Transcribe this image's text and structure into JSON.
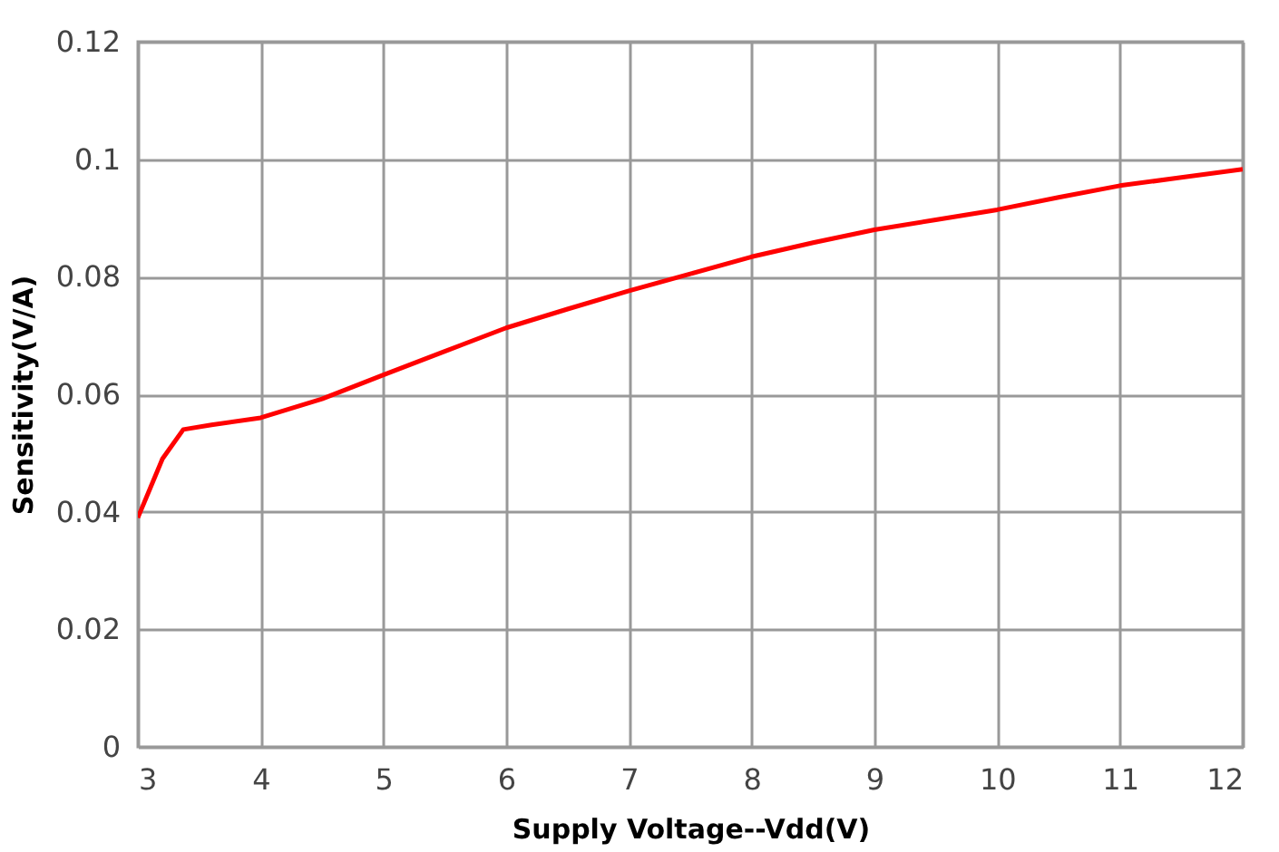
{
  "chart_data": {
    "type": "line",
    "xlabel": "Supply Voltage--Vdd(V)",
    "ylabel": "Sensitivity(V/A)",
    "x": [
      3,
      3.1,
      3.2,
      3.37,
      3.6,
      4,
      4.5,
      5,
      5.5,
      6,
      6.5,
      7,
      7.5,
      8,
      8.5,
      9,
      9.5,
      10,
      10.5,
      11,
      11.5,
      12
    ],
    "series": [
      {
        "color": "#ff0000",
        "values": [
          0.039,
          0.044,
          0.049,
          0.054,
          0.0548,
          0.056,
          0.0592,
          0.0633,
          0.0673,
          0.0713,
          0.0745,
          0.0776,
          0.0805,
          0.0834,
          0.0858,
          0.088,
          0.0897,
          0.0914,
          0.0935,
          0.0955,
          0.0969,
          0.0983
        ]
      }
    ],
    "xlim": [
      3,
      12
    ],
    "xticks": [
      3,
      4,
      5,
      6,
      7,
      8,
      9,
      10,
      11,
      12
    ],
    "ylim": [
      0,
      0.12
    ],
    "yticks": [
      0,
      0.02,
      0.04,
      0.06,
      0.08,
      0.1,
      0.12
    ],
    "grid": true,
    "marker": "none",
    "line_style": "solid"
  }
}
